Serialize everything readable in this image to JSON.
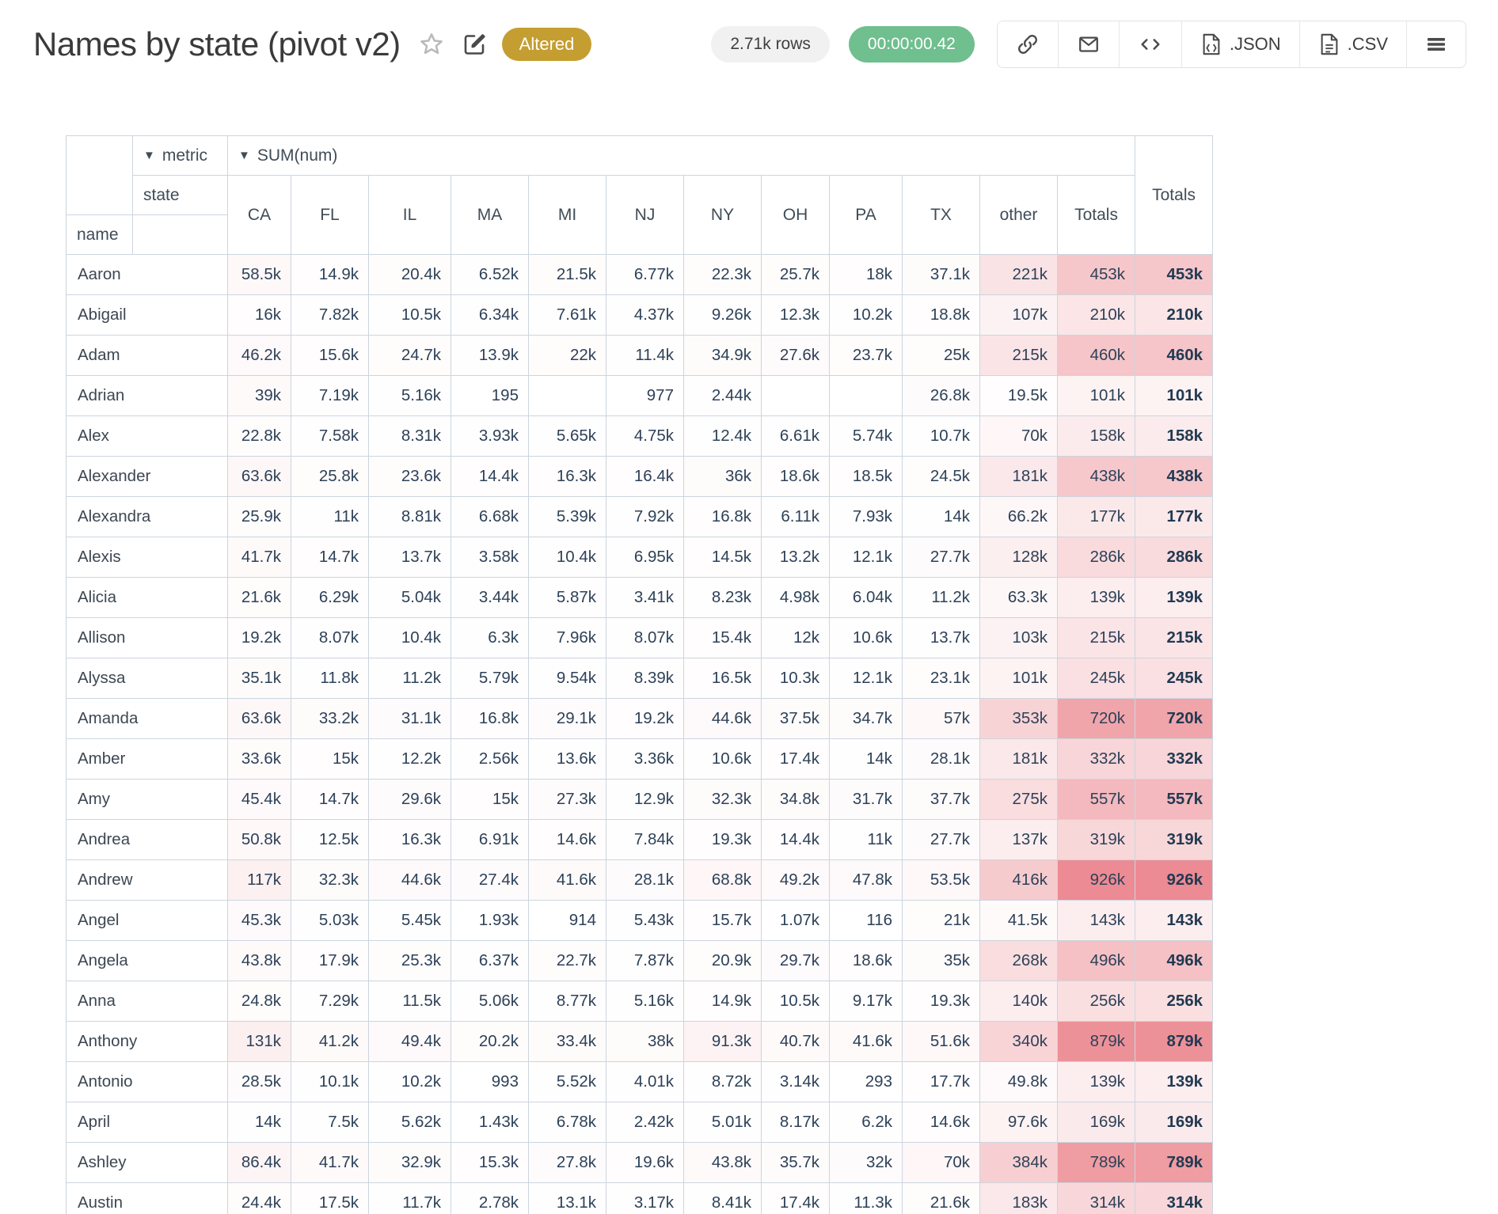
{
  "header": {
    "title": "Names by state (pivot v2)",
    "altered_badge": "Altered",
    "rows_badge": "2.71k rows",
    "duration_badge": "00:00:00.42",
    "json_button_label": ".JSON",
    "csv_button_label": ".CSV"
  },
  "colors": {
    "altered_badge": "#c59e31",
    "duration_badge": "#70bf8e",
    "heatmap_base": "#e04450",
    "heatmap_max_alpha": 0.62
  },
  "table": {
    "metric_dropdown": {
      "caret": "▼",
      "label": "metric"
    },
    "sum_dropdown": {
      "caret": "▼",
      "label": "SUM(num)"
    },
    "col_dimension_label": "state",
    "row_dimension_label": "name",
    "totals_column_label": "Totals",
    "grand_totals_label": "Totals",
    "columns": [
      "CA",
      "FL",
      "IL",
      "MA",
      "MI",
      "NJ",
      "NY",
      "OH",
      "PA",
      "TX",
      "other"
    ],
    "rows": [
      {
        "name": "Aaron",
        "values": [
          "58.5k",
          "14.9k",
          "20.4k",
          "6.52k",
          "21.5k",
          "6.77k",
          "22.3k",
          "25.7k",
          "18k",
          "37.1k",
          "221k"
        ],
        "total": "453k"
      },
      {
        "name": "Abigail",
        "values": [
          "16k",
          "7.82k",
          "10.5k",
          "6.34k",
          "7.61k",
          "4.37k",
          "9.26k",
          "12.3k",
          "10.2k",
          "18.8k",
          "107k"
        ],
        "total": "210k"
      },
      {
        "name": "Adam",
        "values": [
          "46.2k",
          "15.6k",
          "24.7k",
          "13.9k",
          "22k",
          "11.4k",
          "34.9k",
          "27.6k",
          "23.7k",
          "25k",
          "215k"
        ],
        "total": "460k"
      },
      {
        "name": "Adrian",
        "values": [
          "39k",
          "7.19k",
          "5.16k",
          "195",
          "",
          "977",
          "2.44k",
          "",
          "",
          "26.8k",
          "19.5k"
        ],
        "total": "101k"
      },
      {
        "name": "Alex",
        "values": [
          "22.8k",
          "7.58k",
          "8.31k",
          "3.93k",
          "5.65k",
          "4.75k",
          "12.4k",
          "6.61k",
          "5.74k",
          "10.7k",
          "70k"
        ],
        "total": "158k"
      },
      {
        "name": "Alexander",
        "values": [
          "63.6k",
          "25.8k",
          "23.6k",
          "14.4k",
          "16.3k",
          "16.4k",
          "36k",
          "18.6k",
          "18.5k",
          "24.5k",
          "181k"
        ],
        "total": "438k"
      },
      {
        "name": "Alexandra",
        "values": [
          "25.9k",
          "11k",
          "8.81k",
          "6.68k",
          "5.39k",
          "7.92k",
          "16.8k",
          "6.11k",
          "7.93k",
          "14k",
          "66.2k"
        ],
        "total": "177k"
      },
      {
        "name": "Alexis",
        "values": [
          "41.7k",
          "14.7k",
          "13.7k",
          "3.58k",
          "10.4k",
          "6.95k",
          "14.5k",
          "13.2k",
          "12.1k",
          "27.7k",
          "128k"
        ],
        "total": "286k"
      },
      {
        "name": "Alicia",
        "values": [
          "21.6k",
          "6.29k",
          "5.04k",
          "3.44k",
          "5.87k",
          "3.41k",
          "8.23k",
          "4.98k",
          "6.04k",
          "11.2k",
          "63.3k"
        ],
        "total": "139k"
      },
      {
        "name": "Allison",
        "values": [
          "19.2k",
          "8.07k",
          "10.4k",
          "6.3k",
          "7.96k",
          "8.07k",
          "15.4k",
          "12k",
          "10.6k",
          "13.7k",
          "103k"
        ],
        "total": "215k"
      },
      {
        "name": "Alyssa",
        "values": [
          "35.1k",
          "11.8k",
          "11.2k",
          "5.79k",
          "9.54k",
          "8.39k",
          "16.5k",
          "10.3k",
          "12.1k",
          "23.1k",
          "101k"
        ],
        "total": "245k"
      },
      {
        "name": "Amanda",
        "values": [
          "63.6k",
          "33.2k",
          "31.1k",
          "16.8k",
          "29.1k",
          "19.2k",
          "44.6k",
          "37.5k",
          "34.7k",
          "57k",
          "353k"
        ],
        "total": "720k"
      },
      {
        "name": "Amber",
        "values": [
          "33.6k",
          "15k",
          "12.2k",
          "2.56k",
          "13.6k",
          "3.36k",
          "10.6k",
          "17.4k",
          "14k",
          "28.1k",
          "181k"
        ],
        "total": "332k"
      },
      {
        "name": "Amy",
        "values": [
          "45.4k",
          "14.7k",
          "29.6k",
          "15k",
          "27.3k",
          "12.9k",
          "32.3k",
          "34.8k",
          "31.7k",
          "37.7k",
          "275k"
        ],
        "total": "557k"
      },
      {
        "name": "Andrea",
        "values": [
          "50.8k",
          "12.5k",
          "16.3k",
          "6.91k",
          "14.6k",
          "7.84k",
          "19.3k",
          "14.4k",
          "11k",
          "27.7k",
          "137k"
        ],
        "total": "319k"
      },
      {
        "name": "Andrew",
        "values": [
          "117k",
          "32.3k",
          "44.6k",
          "27.4k",
          "41.6k",
          "28.1k",
          "68.8k",
          "49.2k",
          "47.8k",
          "53.5k",
          "416k"
        ],
        "total": "926k"
      },
      {
        "name": "Angel",
        "values": [
          "45.3k",
          "5.03k",
          "5.45k",
          "1.93k",
          "914",
          "5.43k",
          "15.7k",
          "1.07k",
          "116",
          "21k",
          "41.5k"
        ],
        "total": "143k"
      },
      {
        "name": "Angela",
        "values": [
          "43.8k",
          "17.9k",
          "25.3k",
          "6.37k",
          "22.7k",
          "7.87k",
          "20.9k",
          "29.7k",
          "18.6k",
          "35k",
          "268k"
        ],
        "total": "496k"
      },
      {
        "name": "Anna",
        "values": [
          "24.8k",
          "7.29k",
          "11.5k",
          "5.06k",
          "8.77k",
          "5.16k",
          "14.9k",
          "10.5k",
          "9.17k",
          "19.3k",
          "140k"
        ],
        "total": "256k"
      },
      {
        "name": "Anthony",
        "values": [
          "131k",
          "41.2k",
          "49.4k",
          "20.2k",
          "33.4k",
          "38k",
          "91.3k",
          "40.7k",
          "41.6k",
          "51.6k",
          "340k"
        ],
        "total": "879k"
      },
      {
        "name": "Antonio",
        "values": [
          "28.5k",
          "10.1k",
          "10.2k",
          "993",
          "5.52k",
          "4.01k",
          "8.72k",
          "3.14k",
          "293",
          "17.7k",
          "49.8k"
        ],
        "total": "139k"
      },
      {
        "name": "April",
        "values": [
          "14k",
          "7.5k",
          "5.62k",
          "1.43k",
          "6.78k",
          "2.42k",
          "5.01k",
          "8.17k",
          "6.2k",
          "14.6k",
          "97.6k"
        ],
        "total": "169k"
      },
      {
        "name": "Ashley",
        "values": [
          "86.4k",
          "41.7k",
          "32.9k",
          "15.3k",
          "27.8k",
          "19.6k",
          "43.8k",
          "35.7k",
          "32k",
          "70k",
          "384k"
        ],
        "total": "789k"
      },
      {
        "name": "Austin",
        "values": [
          "24.4k",
          "17.5k",
          "11.7k",
          "2.78k",
          "13.1k",
          "3.17k",
          "8.41k",
          "17.4k",
          "11.3k",
          "21.6k",
          "183k"
        ],
        "total": "314k"
      }
    ]
  }
}
